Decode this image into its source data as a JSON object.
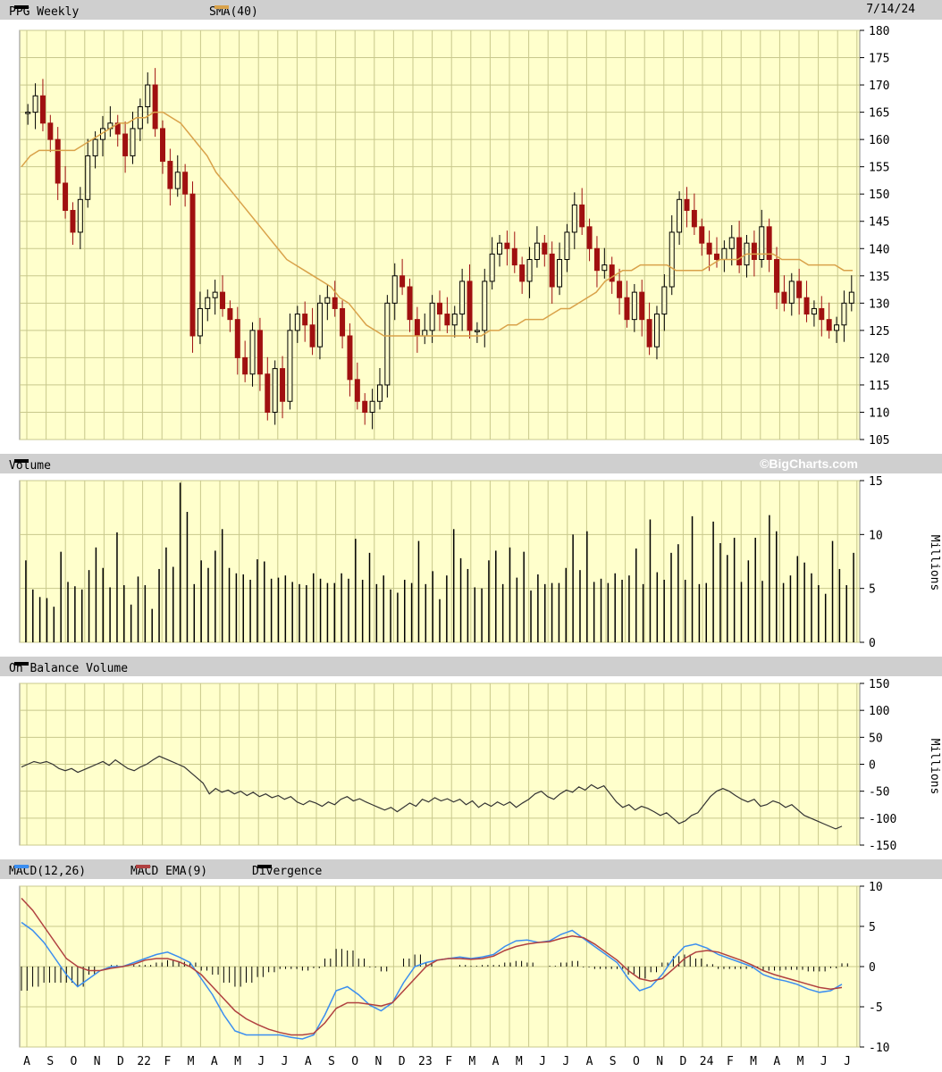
{
  "header": {
    "symbol_label": "PPG Weekly",
    "sma_label": "SMA(40)",
    "date": "7/14/24",
    "watermark": "©BigCharts.com"
  },
  "panels": {
    "volume_label": "Volume",
    "obv_label": "On Balance Volume",
    "macd_label": "MACD(12,26)",
    "macd_ema_label": "MACD EMA(9)",
    "divergence_label": "Divergence",
    "millions": "Millions"
  },
  "colors": {
    "plot_bg": "#ffffcc",
    "grid": "#c8c88c",
    "up": "#000000",
    "down": "#a01010",
    "sma": "#d9a24a",
    "macd": "#3b8ef0",
    "macd_ema": "#b04040",
    "obv": "#333333"
  },
  "chart_data": [
    {
      "type": "candlestick",
      "title": "PPG Weekly",
      "series_names": [
        "PPG Weekly",
        "SMA(40)"
      ],
      "x_labels": [
        "A",
        "S",
        "O",
        "N",
        "D",
        "22",
        "F",
        "M",
        "A",
        "M",
        "J",
        "J",
        "A",
        "S",
        "O",
        "N",
        "D",
        "23",
        "F",
        "M",
        "A",
        "M",
        "J",
        "J",
        "A",
        "S",
        "O",
        "N",
        "D",
        "24",
        "F",
        "M",
        "A",
        "M",
        "J",
        "J"
      ],
      "ylim": [
        105,
        180
      ],
      "y_ticks": [
        105,
        110,
        115,
        120,
        125,
        130,
        135,
        140,
        145,
        150,
        155,
        160,
        165,
        170,
        175,
        180
      ],
      "close": [
        165,
        168,
        163,
        160,
        152,
        147,
        143,
        149,
        157,
        160,
        162,
        163,
        161,
        157,
        162,
        166,
        170,
        162,
        156,
        151,
        154,
        150,
        124,
        129,
        131,
        132,
        129,
        127,
        120,
        117,
        125,
        117,
        110,
        118,
        112,
        125,
        128,
        126,
        122,
        130,
        131,
        129,
        124,
        116,
        112,
        110,
        112,
        115,
        130,
        135,
        133,
        127,
        124,
        125,
        130,
        128,
        126,
        128,
        134,
        125,
        125,
        134,
        139,
        141,
        140,
        137,
        134,
        138,
        141,
        139,
        133,
        138,
        143,
        148,
        144,
        140,
        136,
        137,
        134,
        131,
        127,
        132,
        127,
        122,
        128,
        133,
        143,
        149,
        147,
        144,
        141,
        139,
        138,
        140,
        142,
        137,
        141,
        138,
        144,
        138,
        132,
        130,
        134,
        131,
        128,
        129,
        127,
        125,
        126,
        130,
        132
      ],
      "sma40": [
        155,
        157,
        158,
        158,
        158,
        158,
        158,
        159,
        160,
        161,
        162,
        163,
        163,
        164,
        164,
        165,
        165,
        164,
        163,
        161,
        159,
        157,
        154,
        152,
        150,
        148,
        146,
        144,
        142,
        140,
        138,
        137,
        136,
        135,
        134,
        133,
        131,
        130,
        128,
        126,
        125,
        124,
        124,
        124,
        124,
        124,
        124,
        124,
        124,
        124,
        124,
        124,
        124,
        125,
        125,
        126,
        126,
        127,
        127,
        127,
        128,
        129,
        129,
        130,
        131,
        132,
        134,
        135,
        136,
        136,
        137,
        137,
        137,
        137,
        136,
        136,
        136,
        136,
        137,
        138,
        138,
        138,
        139,
        139,
        139,
        139,
        138,
        138,
        138,
        137,
        137,
        137,
        137,
        136,
        136
      ]
    },
    {
      "type": "bar",
      "title": "Volume",
      "ylabel": "Millions",
      "ylim": [
        0,
        15
      ],
      "y_ticks": [
        0,
        5,
        10,
        15
      ],
      "values": [
        7.6,
        4.9,
        4.2,
        4.1,
        3.3,
        8.4,
        5.6,
        5.2,
        4.9,
        6.7,
        8.8,
        6.9,
        5.1,
        10.2,
        5.3,
        3.5,
        6.1,
        5.3,
        3.1,
        6.8,
        8.8,
        7.0,
        14.8,
        12.1,
        5.4,
        7.6,
        6.9,
        8.5,
        10.5,
        6.9,
        6.4,
        6.3,
        5.8,
        7.7,
        7.5,
        5.9,
        6.0,
        6.2,
        5.6,
        5.4,
        5.3,
        6.4,
        5.9,
        5.5,
        5.5,
        6.4,
        5.9,
        9.6,
        5.8,
        8.3,
        5.4,
        6.2,
        4.9,
        4.6,
        5.8,
        5.5,
        9.4,
        5.4,
        6.6,
        4.0,
        6.2,
        10.5,
        7.8,
        6.8,
        5.1,
        5.0,
        7.6,
        8.5,
        5.4,
        8.8,
        6.0,
        8.4,
        4.8,
        6.3,
        5.4,
        5.5,
        5.5,
        6.9,
        10.0,
        6.7,
        10.3,
        5.6,
        5.9,
        5.5,
        6.4,
        5.8,
        6.2,
        8.7,
        5.4,
        11.4,
        6.5,
        5.8,
        8.3,
        9.1,
        5.8,
        11.7,
        5.4,
        5.5,
        11.2,
        9.2,
        8.1,
        9.7,
        5.6,
        7.6,
        9.7,
        5.7,
        11.8,
        10.3,
        5.5,
        6.2,
        8.0,
        7.4,
        6.4,
        5.3,
        4.5,
        9.4,
        6.8,
        5.3,
        8.3
      ]
    },
    {
      "type": "line",
      "title": "On Balance Volume",
      "ylabel": "Millions",
      "ylim": [
        -150,
        150
      ],
      "y_ticks": [
        -150,
        -100,
        -50,
        0,
        50,
        100,
        150
      ],
      "series": [
        {
          "name": "On Balance Volume",
          "values": [
            -5,
            0,
            5,
            2,
            5,
            0,
            -8,
            -12,
            -8,
            -15,
            -10,
            -5,
            0,
            5,
            -2,
            8,
            0,
            -8,
            -12,
            -5,
            0,
            8,
            15,
            10,
            5,
            0,
            -5,
            -15,
            -25,
            -35,
            -55,
            -45,
            -52,
            -48,
            -55,
            -50,
            -58,
            -52,
            -60,
            -55,
            -62,
            -58,
            -65,
            -60,
            -70,
            -75,
            -68,
            -72,
            -78,
            -70,
            -75,
            -65,
            -60,
            -68,
            -64,
            -70,
            -75,
            -80,
            -85,
            -80,
            -88,
            -80,
            -72,
            -78,
            -65,
            -70,
            -62,
            -68,
            -64,
            -70,
            -65,
            -75,
            -68,
            -80,
            -72,
            -78,
            -70,
            -76,
            -70,
            -80,
            -72,
            -65,
            -55,
            -50,
            -60,
            -65,
            -55,
            -48,
            -52,
            -42,
            -48,
            -38,
            -45,
            -40,
            -55,
            -70,
            -80,
            -75,
            -85,
            -78,
            -82,
            -88,
            -95,
            -90,
            -100,
            -110,
            -105,
            -95,
            -90,
            -75,
            -60,
            -50,
            -45,
            -50,
            -58,
            -65,
            -70,
            -65,
            -78,
            -75,
            -68,
            -72,
            -80,
            -75,
            -85,
            -95,
            -100,
            -105,
            -110,
            -115,
            -120,
            -115
          ]
        }
      ]
    },
    {
      "type": "line",
      "title": "MACD(12,26)",
      "ylim": [
        -10,
        10
      ],
      "y_ticks": [
        -10,
        -5,
        0,
        5,
        10
      ],
      "series": [
        {
          "name": "MACD(12,26)",
          "values": [
            5.5,
            4.5,
            3.0,
            1.0,
            -1.0,
            -2.5,
            -1.5,
            -0.5,
            0,
            0,
            0.5,
            1.0,
            1.5,
            1.8,
            1.2,
            0.5,
            -1.5,
            -3.5,
            -6.0,
            -8.0,
            -8.5,
            -8.5,
            -8.5,
            -8.5,
            -8.8,
            -9.0,
            -8.5,
            -6.0,
            -3.0,
            -2.5,
            -3.5,
            -4.8,
            -5.5,
            -4.5,
            -2.0,
            0,
            0.5,
            0.8,
            1.0,
            1.2,
            1.0,
            1.2,
            1.5,
            2.5,
            3.2,
            3.3,
            3.0,
            3.2,
            4.0,
            4.5,
            3.5,
            2.5,
            1.5,
            0.5,
            -1.5,
            -3.0,
            -2.5,
            -1.0,
            1.0,
            2.5,
            2.8,
            2.3,
            1.5,
            1.0,
            0.5,
            0,
            -1.0,
            -1.5,
            -1.8,
            -2.2,
            -2.8,
            -3.2,
            -3.0,
            -2.2
          ]
        },
        {
          "name": "MACD EMA(9)",
          "values": [
            8.5,
            7.0,
            5.0,
            3.0,
            1.0,
            0,
            -0.5,
            -0.5,
            -0.2,
            0,
            0.3,
            0.8,
            1.0,
            1.0,
            0.6,
            0,
            -1.0,
            -2.5,
            -4.0,
            -5.5,
            -6.5,
            -7.2,
            -7.8,
            -8.2,
            -8.5,
            -8.5,
            -8.3,
            -7.0,
            -5.2,
            -4.5,
            -4.5,
            -4.7,
            -4.9,
            -4.5,
            -3.0,
            -1.5,
            0,
            0.8,
            1.0,
            1.0,
            0.9,
            1.0,
            1.3,
            2.0,
            2.5,
            2.8,
            3.0,
            3.1,
            3.5,
            3.8,
            3.6,
            2.8,
            1.8,
            0.8,
            -0.5,
            -1.5,
            -1.8,
            -1.5,
            -0.3,
            1.0,
            1.8,
            2.0,
            1.8,
            1.3,
            0.8,
            0.2,
            -0.5,
            -1.0,
            -1.4,
            -1.8,
            -2.2,
            -2.6,
            -2.8,
            -2.6
          ]
        },
        {
          "name": "Divergence",
          "values": [
            -3.0,
            -2.5,
            -2.0,
            -2.0,
            -2.0,
            -2.5,
            -1.0,
            0,
            0.2,
            0,
            0.2,
            0.2,
            0.5,
            0.8,
            0.6,
            0.5,
            -0.5,
            -1.0,
            -2.0,
            -2.5,
            -2.0,
            -1.3,
            -0.7,
            -0.3,
            -0.3,
            -0.5,
            -0.2,
            1.0,
            2.2,
            2.0,
            1.0,
            -0.1,
            -0.6,
            0,
            1.0,
            1.5,
            0.5,
            0,
            0,
            0.2,
            0.1,
            0.2,
            0.2,
            0.5,
            0.7,
            0.5,
            0,
            0.1,
            0.5,
            0.7,
            -0.1,
            -0.3,
            -0.3,
            -0.3,
            -1.0,
            -1.5,
            -0.7,
            0.5,
            1.3,
            1.5,
            1.0,
            0.3,
            -0.3,
            -0.3,
            -0.3,
            -0.2,
            -0.5,
            -0.5,
            -0.4,
            -0.4,
            -0.6,
            -0.6,
            -0.2,
            0.4
          ]
        }
      ]
    }
  ]
}
